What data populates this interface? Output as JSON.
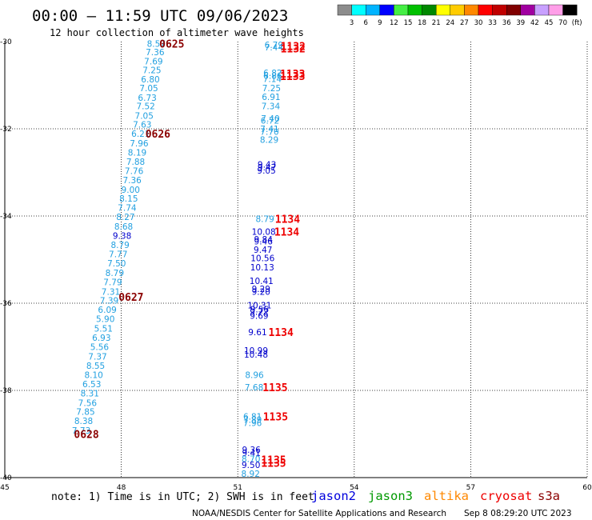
{
  "chart_data": {
    "type": "scatter",
    "title": "00:00 – 11:59 UTC 09/06/2023",
    "subtitle": "12 hour collection of altimeter wave heights",
    "xlim": [
      45,
      60
    ],
    "ylim": [
      -40,
      -30
    ],
    "x_ticks": [
      "45",
      "48",
      "51",
      "54",
      "57",
      "60"
    ],
    "y_ticks": [
      "-30",
      "-32",
      "-34",
      "-36",
      "-38",
      "-40"
    ],
    "grid": "dotted",
    "colorbar": {
      "labels": [
        "3",
        "6",
        "9",
        "12",
        "15",
        "18",
        "21",
        "24",
        "27",
        "30",
        "33",
        "36",
        "39",
        "42",
        "45",
        "70",
        "(ft)"
      ],
      "colors": [
        "#8c8c8c",
        "#00ffff",
        "#00b4ff",
        "#0000ff",
        "#44ee44",
        "#00c000",
        "#008800",
        "#ffff00",
        "#ffcc00",
        "#ff8800",
        "#ff0000",
        "#c00000",
        "#800000",
        "#a000a0",
        "#c8a0ff",
        "#ff9ee8",
        "#000000"
      ]
    },
    "points": [
      {
        "lon": 48.9,
        "lat": -30.05,
        "swh": "8.57",
        "color": "#22a0e0"
      },
      {
        "lon": 48.87,
        "lat": -30.24,
        "swh": "7.36",
        "color": "#22a0e0"
      },
      {
        "lon": 48.83,
        "lat": -30.45,
        "swh": "7.69",
        "color": "#22a0e0"
      },
      {
        "lon": 48.79,
        "lat": -30.65,
        "swh": "7.25",
        "color": "#22a0e0"
      },
      {
        "lon": 48.75,
        "lat": -30.86,
        "swh": "6.80",
        "color": "#22a0e0"
      },
      {
        "lon": 48.71,
        "lat": -31.06,
        "swh": "7.05",
        "color": "#22a0e0"
      },
      {
        "lon": 48.67,
        "lat": -31.28,
        "swh": "6.73",
        "color": "#22a0e0"
      },
      {
        "lon": 48.63,
        "lat": -31.48,
        "swh": "7.52",
        "color": "#22a0e0"
      },
      {
        "lon": 48.59,
        "lat": -31.7,
        "swh": "7.05",
        "color": "#22a0e0"
      },
      {
        "lon": 48.54,
        "lat": -31.9,
        "swh": "7.63",
        "color": "#22a0e0"
      },
      {
        "lon": 48.5,
        "lat": -32.11,
        "swh": "6.21",
        "color": "#22a0e0"
      },
      {
        "lon": 48.46,
        "lat": -32.33,
        "swh": "7.96",
        "color": "#22a0e0"
      },
      {
        "lon": 48.41,
        "lat": -32.54,
        "swh": "8.19",
        "color": "#22a0e0"
      },
      {
        "lon": 48.37,
        "lat": -32.75,
        "swh": "7.88",
        "color": "#22a0e0"
      },
      {
        "lon": 48.33,
        "lat": -32.96,
        "swh": "7.76",
        "color": "#22a0e0"
      },
      {
        "lon": 48.28,
        "lat": -33.17,
        "swh": "7.36",
        "color": "#22a0e0"
      },
      {
        "lon": 48.24,
        "lat": -33.39,
        "swh": "9.00",
        "color": "#22a0e0"
      },
      {
        "lon": 48.19,
        "lat": -33.6,
        "swh": "8.15",
        "color": "#22a0e0"
      },
      {
        "lon": 48.15,
        "lat": -33.81,
        "swh": "7.74",
        "color": "#22a0e0"
      },
      {
        "lon": 48.11,
        "lat": -34.02,
        "swh": "8.27",
        "color": "#22a0e0"
      },
      {
        "lon": 48.06,
        "lat": -34.24,
        "swh": "8.68",
        "color": "#22a0e0"
      },
      {
        "lon": 48.02,
        "lat": -34.45,
        "swh": "9.38",
        "color": "#0000cc"
      },
      {
        "lon": 47.97,
        "lat": -34.66,
        "swh": "8.79",
        "color": "#22a0e0"
      },
      {
        "lon": 47.92,
        "lat": -34.87,
        "swh": "7.77",
        "color": "#22a0e0"
      },
      {
        "lon": 47.88,
        "lat": -35.08,
        "swh": "7.50",
        "color": "#22a0e0"
      },
      {
        "lon": 47.83,
        "lat": -35.3,
        "swh": "8.79",
        "color": "#22a0e0"
      },
      {
        "lon": 47.78,
        "lat": -35.51,
        "swh": "7.79",
        "color": "#22a0e0"
      },
      {
        "lon": 47.73,
        "lat": -35.73,
        "swh": "7.31",
        "color": "#22a0e0"
      },
      {
        "lon": 47.69,
        "lat": -35.94,
        "swh": "7.39",
        "color": "#22a0e0"
      },
      {
        "lon": 47.64,
        "lat": -36.15,
        "swh": "6.09",
        "color": "#22a0e0"
      },
      {
        "lon": 47.59,
        "lat": -36.36,
        "swh": "5.90",
        "color": "#22a0e0"
      },
      {
        "lon": 47.54,
        "lat": -36.58,
        "swh": "5.51",
        "color": "#22a0e0"
      },
      {
        "lon": 47.49,
        "lat": -36.79,
        "swh": "6.93",
        "color": "#22a0e0"
      },
      {
        "lon": 47.44,
        "lat": -37.0,
        "swh": "5.56",
        "color": "#22a0e0"
      },
      {
        "lon": 47.39,
        "lat": -37.22,
        "swh": "7.37",
        "color": "#22a0e0"
      },
      {
        "lon": 47.34,
        "lat": -37.43,
        "swh": "8.55",
        "color": "#22a0e0"
      },
      {
        "lon": 47.29,
        "lat": -37.64,
        "swh": "8.10",
        "color": "#22a0e0"
      },
      {
        "lon": 47.24,
        "lat": -37.85,
        "swh": "6.53",
        "color": "#22a0e0"
      },
      {
        "lon": 47.19,
        "lat": -38.06,
        "swh": "8.31",
        "color": "#22a0e0"
      },
      {
        "lon": 47.13,
        "lat": -38.28,
        "swh": "7.56",
        "color": "#22a0e0"
      },
      {
        "lon": 47.08,
        "lat": -38.49,
        "swh": "7.85",
        "color": "#22a0e0"
      },
      {
        "lon": 47.03,
        "lat": -38.7,
        "swh": "8.38",
        "color": "#22a0e0"
      },
      {
        "lon": 46.97,
        "lat": -38.92,
        "swh": "7.73",
        "color": "#22a0e0"
      },
      {
        "lon": 51.93,
        "lat": -30.07,
        "swh": "6.79",
        "color": "#22a0e0"
      },
      {
        "lon": 51.93,
        "lat": -30.13,
        "swh": "7.44",
        "color": "#22a0e0"
      },
      {
        "lon": 51.9,
        "lat": -30.72,
        "swh": "6.82",
        "color": "#22a0e0"
      },
      {
        "lon": 51.9,
        "lat": -30.78,
        "swh": "6.86",
        "color": "#22a0e0"
      },
      {
        "lon": 51.89,
        "lat": -30.85,
        "swh": "7.14",
        "color": "#22a0e0"
      },
      {
        "lon": 51.87,
        "lat": -31.06,
        "swh": "7.25",
        "color": "#22a0e0"
      },
      {
        "lon": 51.86,
        "lat": -31.27,
        "swh": "6.91",
        "color": "#22a0e0"
      },
      {
        "lon": 51.85,
        "lat": -31.48,
        "swh": "7.34",
        "color": "#22a0e0"
      },
      {
        "lon": 51.84,
        "lat": -31.76,
        "swh": "7.40",
        "color": "#22a0e0"
      },
      {
        "lon": 51.83,
        "lat": -31.81,
        "swh": "6.72",
        "color": "#22a0e0"
      },
      {
        "lon": 51.82,
        "lat": -32.0,
        "swh": "7.41",
        "color": "#22a0e0"
      },
      {
        "lon": 51.82,
        "lat": -32.06,
        "swh": "7.70",
        "color": "#22a0e0"
      },
      {
        "lon": 51.81,
        "lat": -32.25,
        "swh": "8.29",
        "color": "#22a0e0"
      },
      {
        "lon": 51.75,
        "lat": -32.82,
        "swh": "9.43",
        "color": "#0000cc"
      },
      {
        "lon": 51.75,
        "lat": -32.88,
        "swh": "9.47",
        "color": "#0000cc"
      },
      {
        "lon": 51.74,
        "lat": -32.95,
        "swh": "9.05",
        "color": "#0000cc"
      },
      {
        "lon": 51.7,
        "lat": -34.06,
        "swh": "8.79",
        "color": "#22a0e0"
      },
      {
        "lon": 51.67,
        "lat": -34.36,
        "swh": "10.08",
        "color": "#0000cc"
      },
      {
        "lon": 51.66,
        "lat": -34.53,
        "swh": "9.84",
        "color": "#0000cc"
      },
      {
        "lon": 51.66,
        "lat": -34.58,
        "swh": "9.46",
        "color": "#0000cc"
      },
      {
        "lon": 51.65,
        "lat": -34.77,
        "swh": "9.47",
        "color": "#0000cc"
      },
      {
        "lon": 51.64,
        "lat": -34.96,
        "swh": "10.56",
        "color": "#0000cc"
      },
      {
        "lon": 51.63,
        "lat": -35.17,
        "swh": "10.13",
        "color": "#0000cc"
      },
      {
        "lon": 51.61,
        "lat": -35.49,
        "swh": "10.41",
        "color": "#0000cc"
      },
      {
        "lon": 51.6,
        "lat": -35.67,
        "swh": "9.29",
        "color": "#0000cc"
      },
      {
        "lon": 51.6,
        "lat": -35.73,
        "swh": "9.20",
        "color": "#0000cc"
      },
      {
        "lon": 51.56,
        "lat": -36.05,
        "swh": "10.31",
        "color": "#0000cc"
      },
      {
        "lon": 51.56,
        "lat": -36.14,
        "swh": "9.56",
        "color": "#0000cc"
      },
      {
        "lon": 51.55,
        "lat": -36.19,
        "swh": "9.72",
        "color": "#0000cc"
      },
      {
        "lon": 51.55,
        "lat": -36.28,
        "swh": "9.69",
        "color": "#0000cc"
      },
      {
        "lon": 51.51,
        "lat": -36.66,
        "swh": "9.61",
        "color": "#0000cc"
      },
      {
        "lon": 51.47,
        "lat": -37.08,
        "swh": "10.99",
        "color": "#0000cc"
      },
      {
        "lon": 51.47,
        "lat": -37.17,
        "swh": "10.48",
        "color": "#0000cc"
      },
      {
        "lon": 51.43,
        "lat": -37.64,
        "swh": "8.96",
        "color": "#22a0e0"
      },
      {
        "lon": 51.42,
        "lat": -37.93,
        "swh": "7.68",
        "color": "#22a0e0"
      },
      {
        "lon": 51.38,
        "lat": -38.6,
        "swh": "6.81",
        "color": "#22a0e0"
      },
      {
        "lon": 51.38,
        "lat": -38.67,
        "swh": "7.89",
        "color": "#22a0e0"
      },
      {
        "lon": 51.38,
        "lat": -38.74,
        "swh": "7.96",
        "color": "#22a0e0"
      },
      {
        "lon": 51.35,
        "lat": -39.36,
        "swh": "9.36",
        "color": "#0000cc"
      },
      {
        "lon": 51.35,
        "lat": -39.43,
        "swh": "9.41",
        "color": "#0000cc"
      },
      {
        "lon": 51.34,
        "lat": -39.57,
        "swh": "8.70",
        "color": "#22a0e0"
      },
      {
        "lon": 51.34,
        "lat": -39.71,
        "swh": "9.50",
        "color": "#0000cc"
      },
      {
        "lon": 51.33,
        "lat": -39.91,
        "swh": "8.92",
        "color": "#22a0e0"
      }
    ],
    "pass_labels": [
      {
        "text": "0625",
        "lon": 48.98,
        "lat": -30.05,
        "color": "#8b0000"
      },
      {
        "text": "0626",
        "lon": 48.62,
        "lat": -32.11,
        "color": "#8b0000"
      },
      {
        "text": "0627",
        "lon": 47.93,
        "lat": -35.85,
        "color": "#8b0000"
      },
      {
        "text": "0628",
        "lon": 46.78,
        "lat": -39.0,
        "color": "#8b0000"
      },
      {
        "text": "1132",
        "lon": 52.1,
        "lat": -30.1,
        "color": "#ee0000"
      },
      {
        "text": "1132",
        "lon": 52.1,
        "lat": -30.16,
        "color": "#ee0000"
      },
      {
        "text": "1133",
        "lon": 52.09,
        "lat": -30.73,
        "color": "#ee0000"
      },
      {
        "text": "1133",
        "lon": 52.09,
        "lat": -30.79,
        "color": "#ee0000"
      },
      {
        "text": "1134",
        "lon": 51.96,
        "lat": -34.06,
        "color": "#ee0000"
      },
      {
        "text": "1134",
        "lon": 51.94,
        "lat": -34.36,
        "color": "#ee0000"
      },
      {
        "text": "1134",
        "lon": 51.79,
        "lat": -36.66,
        "color": "#ee0000"
      },
      {
        "text": "1135",
        "lon": 51.64,
        "lat": -37.93,
        "color": "#ee0000"
      },
      {
        "text": "1135",
        "lon": 51.65,
        "lat": -38.6,
        "color": "#ee0000"
      },
      {
        "text": "1135",
        "lon": 51.6,
        "lat": -39.59,
        "color": "#ee0000"
      },
      {
        "text": "1135",
        "lon": 51.6,
        "lat": -39.66,
        "color": "#ee0000"
      }
    ]
  },
  "footer": {
    "note": "note: 1) Time is in UTC; 2) SWH is in feet",
    "satellites": [
      {
        "name": "jason2",
        "color": "#0000dd"
      },
      {
        "name": "jason3",
        "color": "#009900"
      },
      {
        "name": "altika",
        "color": "#ff8800"
      },
      {
        "name": "cryosat",
        "color": "#ee0000"
      },
      {
        "name": "s3a",
        "color": "#8b0000"
      }
    ],
    "credit": "NOAA/NESDIS Center for Satellite Applications and Research",
    "timestamp": "Sep  8 08:29:20 UTC 2023"
  }
}
